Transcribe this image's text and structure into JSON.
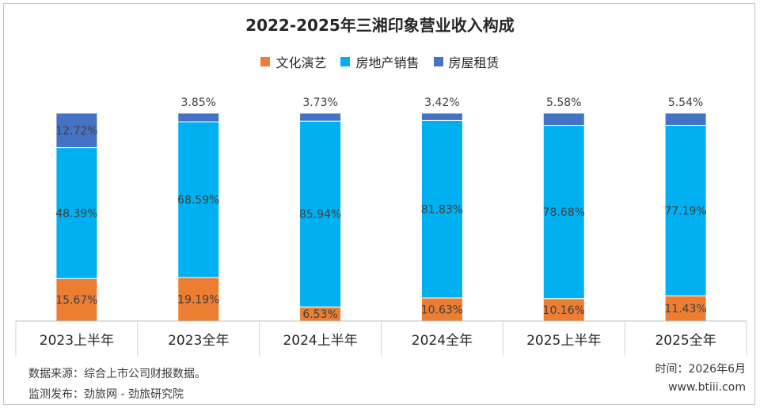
{
  "chart_data": {
    "type": "bar",
    "title": "2022-2025年三湘印象营业收入构成",
    "categories": [
      "2023上半年",
      "2023全年",
      "2024上半年",
      "2024全年",
      "2025上半年",
      "2025全年"
    ],
    "series": [
      {
        "name": "文化演艺",
        "color": "#ED7D31",
        "values": [
          15.67,
          19.19,
          6.53,
          10.63,
          10.16,
          11.43
        ]
      },
      {
        "name": "房地产销售",
        "color": "#00B0F0",
        "values": [
          48.39,
          68.59,
          85.94,
          81.83,
          78.68,
          77.19
        ]
      },
      {
        "name": "房屋租赁",
        "color": "#4472C4",
        "values": [
          12.72,
          3.85,
          3.73,
          3.42,
          5.58,
          5.54
        ]
      }
    ],
    "data_labels": [
      [
        "15.67%",
        "19.19%",
        "6.53%",
        "10.63%",
        "10.16%",
        "11.43%"
      ],
      [
        "48.39%",
        "68.59%",
        "85.94%",
        "81.83%",
        "78.68%",
        "77.19%"
      ],
      [
        "12.72%",
        "3.85%",
        "3.73%",
        "3.42%",
        "5.58%",
        "5.54%"
      ]
    ],
    "stacking": "percent",
    "legend_position": "top",
    "grid": false
  },
  "footer": {
    "source": "数据来源：综合上市公司财报数据。",
    "publisher": "监测发布：劲旅网 - 劲旅研究院",
    "time": "时间：2026年6月",
    "site": "www.btiii.com"
  }
}
